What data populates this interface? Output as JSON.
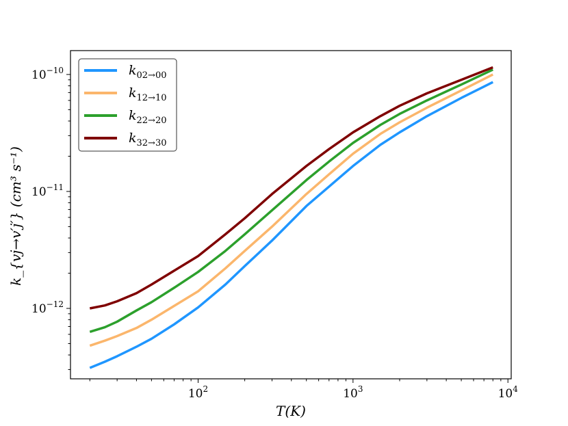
{
  "chart_data": {
    "type": "line",
    "title": "",
    "xlabel": "T(K)",
    "ylabel": "k_{vj→v′j′} (cm³ s⁻¹)",
    "xscale": "log",
    "yscale": "log",
    "xlim": [
      15,
      10500
    ],
    "ylim": [
      2.5e-13,
      1.6e-10
    ],
    "grid": false,
    "legend_position": "top-left",
    "x_ticks": [
      {
        "value": 100,
        "base": "10",
        "exp": "2"
      },
      {
        "value": 1000,
        "base": "10",
        "exp": "3"
      },
      {
        "value": 10000,
        "base": "10",
        "exp": "4"
      }
    ],
    "y_ticks": [
      {
        "value": 1e-12,
        "base": "10",
        "exp": "−12"
      },
      {
        "value": 1e-11,
        "base": "10",
        "exp": "−11"
      },
      {
        "value": 1e-10,
        "base": "10",
        "exp": "−10"
      }
    ],
    "x": [
      20,
      25,
      30,
      40,
      50,
      70,
      100,
      150,
      200,
      300,
      500,
      700,
      1000,
      1500,
      2000,
      3000,
      5000,
      8000
    ],
    "series": [
      {
        "name": "k",
        "sub": "02→00",
        "color": "#1f96ff",
        "values": [
          3.1e-13,
          3.5e-13,
          3.9e-13,
          4.7e-13,
          5.5e-13,
          7.3e-13,
          1.02e-12,
          1.6e-12,
          2.3e-12,
          3.8e-12,
          7.5e-12,
          1.1e-11,
          1.65e-11,
          2.5e-11,
          3.2e-11,
          4.4e-11,
          6.3e-11,
          8.6e-11
        ]
      },
      {
        "name": "k",
        "sub": "12→10",
        "color": "#fbb66c",
        "values": [
          4.8e-13,
          5.3e-13,
          5.8e-13,
          6.8e-13,
          8e-13,
          1.05e-12,
          1.4e-12,
          2.2e-12,
          3.1e-12,
          5e-12,
          9.5e-12,
          1.4e-11,
          2.1e-11,
          3.1e-11,
          3.9e-11,
          5.2e-11,
          7.3e-11,
          1e-10
        ]
      },
      {
        "name": "k",
        "sub": "22→20",
        "color": "#2ca02c",
        "values": [
          6.3e-13,
          6.9e-13,
          7.7e-13,
          9.6e-13,
          1.13e-12,
          1.5e-12,
          2.05e-12,
          3.1e-12,
          4.3e-12,
          6.9e-12,
          1.25e-11,
          1.8e-11,
          2.6e-11,
          3.7e-11,
          4.6e-11,
          6e-11,
          8.2e-11,
          1.1e-10
        ]
      },
      {
        "name": "k",
        "sub": "32→30",
        "color": "#7f0000",
        "values": [
          1e-12,
          1.06e-12,
          1.15e-12,
          1.35e-12,
          1.6e-12,
          2.1e-12,
          2.8e-12,
          4.3e-12,
          5.9e-12,
          9.5e-12,
          1.65e-11,
          2.3e-11,
          3.2e-11,
          4.4e-11,
          5.4e-11,
          6.9e-11,
          9e-11,
          1.15e-10
        ]
      }
    ]
  }
}
